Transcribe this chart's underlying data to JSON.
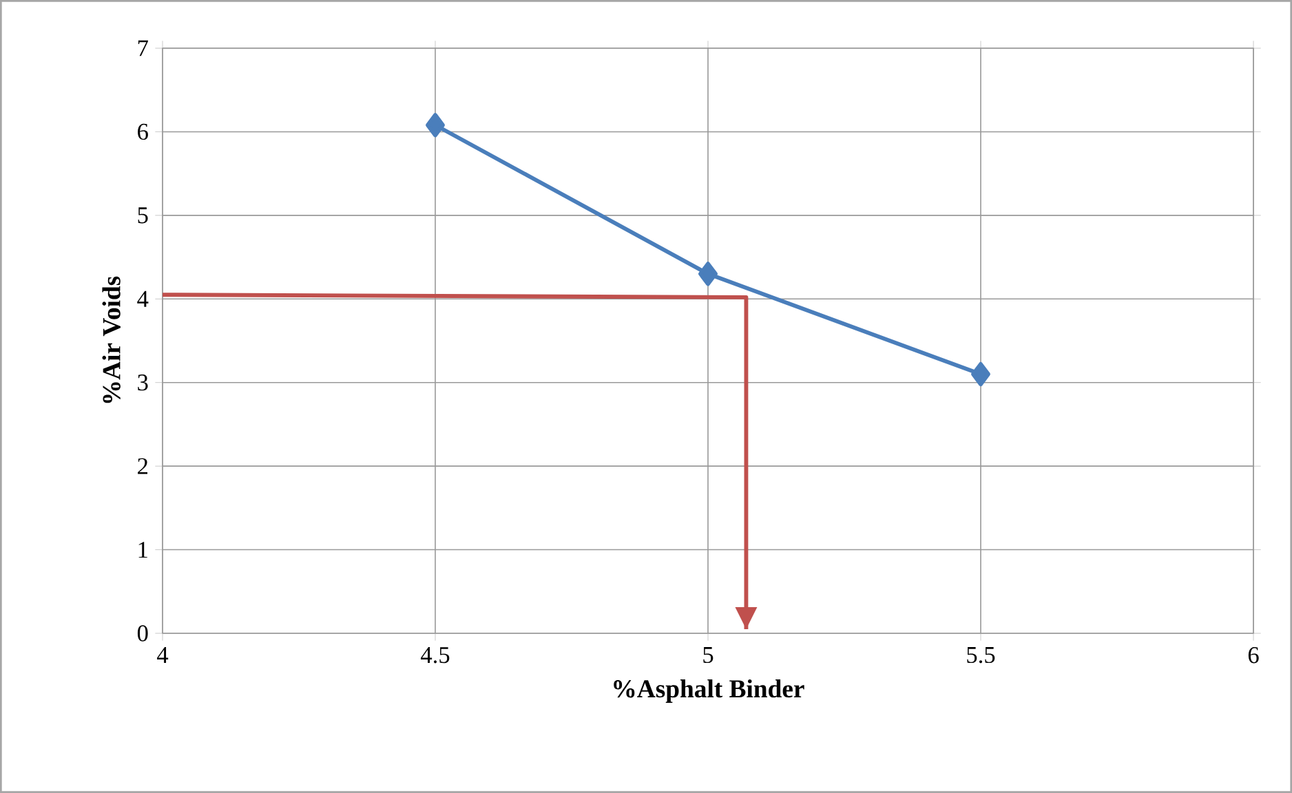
{
  "chart_data": {
    "type": "line",
    "xlabel": "%Asphalt Binder",
    "ylabel": "%Air Voids",
    "xlim": [
      4,
      6
    ],
    "xticks": [
      4,
      4.5,
      5,
      5.5,
      6
    ],
    "ylim": [
      0,
      7
    ],
    "yticks": [
      0,
      1,
      2,
      3,
      4,
      5,
      6,
      7
    ],
    "grid": true,
    "series": [
      {
        "color": "#4a7ebb",
        "x": [
          4.5,
          5,
          5.5
        ],
        "values": [
          6.08,
          4.3,
          3.1
        ],
        "marker": "diamond"
      },
      {
        "color": "#c0504d",
        "x": [
          4,
          5.07,
          5.07
        ],
        "values": [
          4.05,
          4.02,
          0.05
        ],
        "marker": "none"
      }
    ]
  }
}
